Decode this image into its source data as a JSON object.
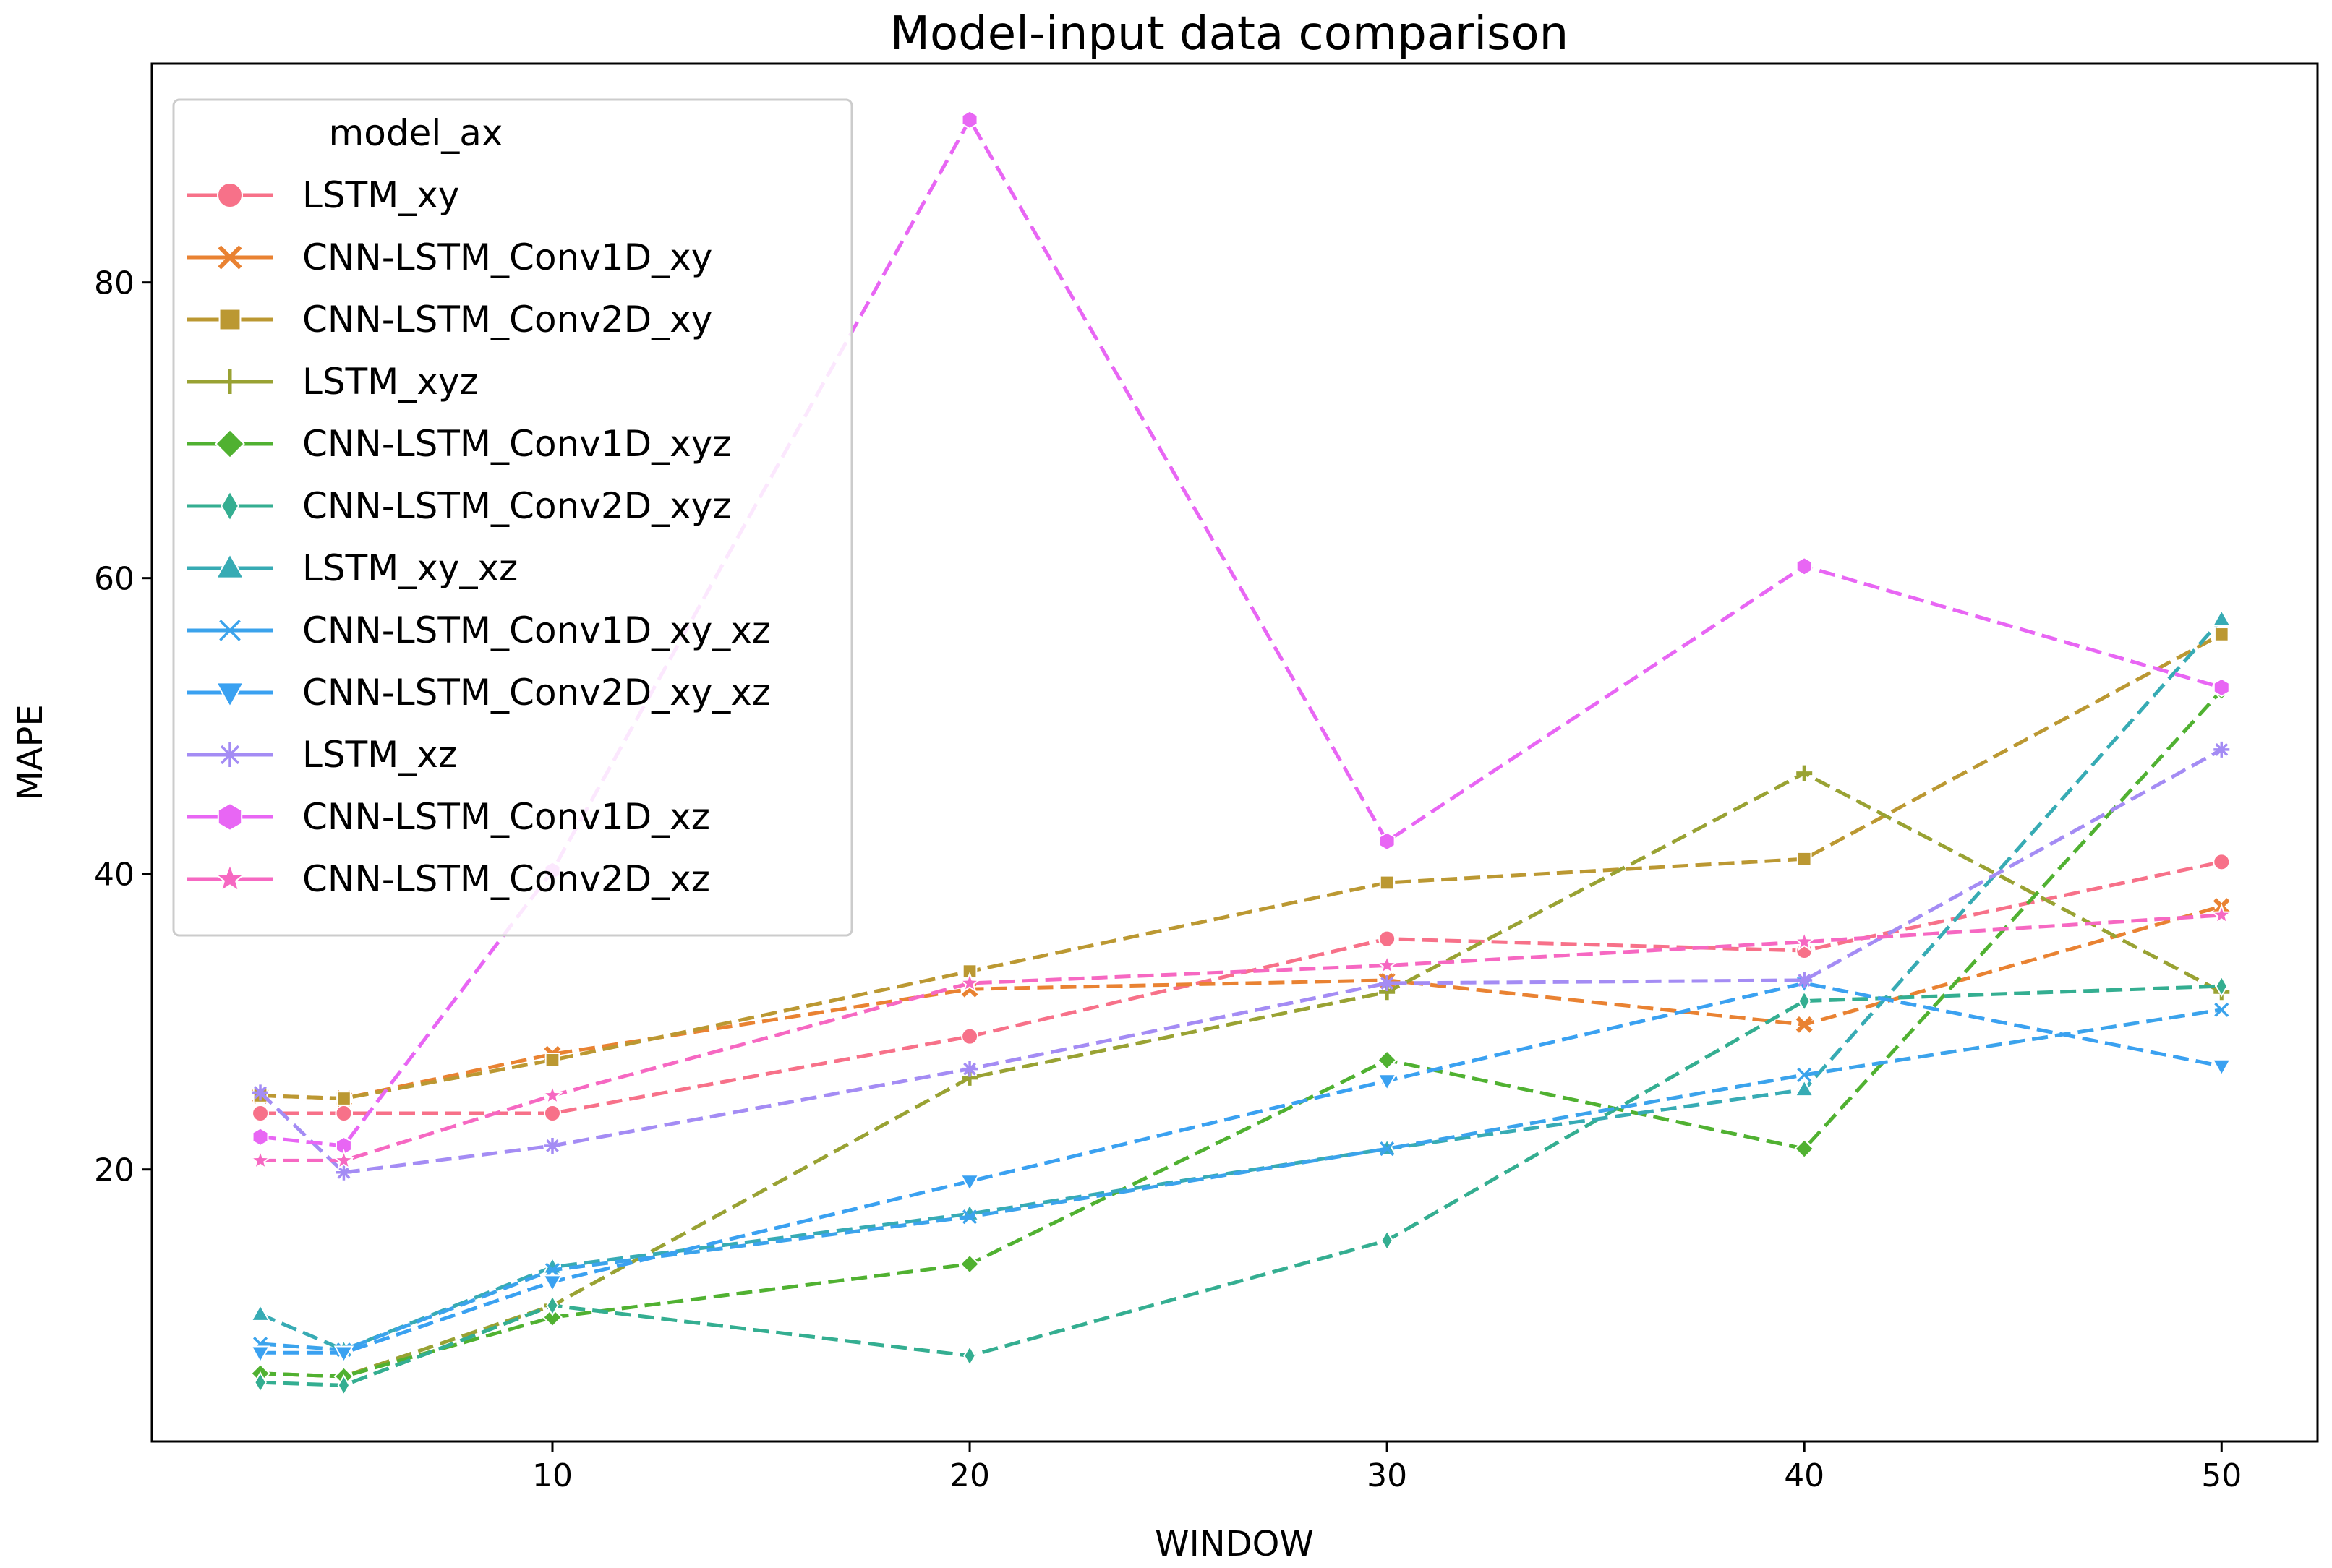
{
  "chart_data": {
    "type": "line",
    "title": "Model-input data comparison",
    "xlabel": "WINDOW",
    "ylabel": "MAPE",
    "xlim": [
      0.4,
      52.3
    ],
    "ylim": [
      1.6,
      94.8
    ],
    "xticks": [
      10,
      20,
      30,
      40,
      50
    ],
    "yticks": [
      20,
      40,
      60,
      80
    ],
    "grid": false,
    "legend_title": "model_ax",
    "legend_position": "upper-left",
    "x": [
      3,
      5,
      10,
      20,
      30,
      40,
      50
    ],
    "series": [
      {
        "name": "LSTM_xy",
        "color": "#f77189",
        "marker": "circle",
        "values": [
          23.8,
          23.8,
          23.8,
          29.0,
          35.6,
          34.8,
          40.8
        ]
      },
      {
        "name": "CNN-LSTM_Conv1D_xy",
        "color": "#e98232",
        "marker": "x",
        "values": [
          25.0,
          24.8,
          27.8,
          32.2,
          32.8,
          29.8,
          37.8
        ]
      },
      {
        "name": "CNN-LSTM_Conv2D_xy",
        "color": "#bb9832",
        "marker": "square",
        "values": [
          25.0,
          24.8,
          27.4,
          33.4,
          39.4,
          41.0,
          56.2
        ]
      },
      {
        "name": "LSTM_xyz",
        "color": "#99a233",
        "marker": "plus",
        "values": [
          6.2,
          6.0,
          10.8,
          26.2,
          32.0,
          46.8,
          32.0
        ]
      },
      {
        "name": "CNN-LSTM_Conv1D_xyz",
        "color": "#50b131",
        "marker": "diamond",
        "values": [
          6.2,
          6.0,
          10.0,
          13.6,
          27.4,
          21.4,
          52.4
        ]
      },
      {
        "name": "CNN-LSTM_Conv2D_xyz",
        "color": "#34ae91",
        "marker": "thin-diamond",
        "values": [
          5.6,
          5.4,
          10.8,
          7.4,
          15.2,
          31.4,
          32.4
        ]
      },
      {
        "name": "LSTM_xy_xz",
        "color": "#37abb4",
        "marker": "triangle-up",
        "values": [
          10.2,
          7.8,
          13.4,
          17.0,
          21.4,
          25.4,
          57.2
        ]
      },
      {
        "name": "CNN-LSTM_Conv1D_xy_xz",
        "color": "#3ba3ec",
        "marker": "x-thin",
        "values": [
          8.2,
          7.8,
          13.2,
          16.8,
          21.4,
          26.4,
          30.8
        ]
      },
      {
        "name": "CNN-LSTM_Conv2D_xy_xz",
        "color": "#3aa1f1",
        "marker": "triangle-down",
        "values": [
          7.6,
          7.6,
          12.4,
          19.2,
          26.0,
          32.6,
          27.0
        ]
      },
      {
        "name": "LSTM_xz",
        "color": "#a48cf4",
        "marker": "asterisk",
        "values": [
          25.2,
          19.8,
          21.6,
          26.8,
          32.6,
          32.8,
          48.4
        ]
      },
      {
        "name": "CNN-LSTM_Conv1D_xz",
        "color": "#e866f4",
        "marker": "hexagon",
        "values": [
          22.2,
          21.6,
          40.2,
          91.0,
          42.2,
          60.8,
          52.6
        ]
      },
      {
        "name": "CNN-LSTM_Conv2D_xz",
        "color": "#f668c2",
        "marker": "star",
        "values": [
          20.6,
          20.6,
          25.0,
          32.6,
          33.8,
          35.4,
          37.2
        ]
      }
    ]
  }
}
